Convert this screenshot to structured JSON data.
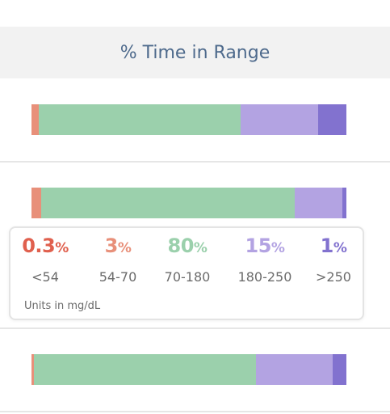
{
  "header": {
    "title": "% Time in Range"
  },
  "colors": {
    "very_low": "#e0604e",
    "low": "#e8907a",
    "in_range": "#9bd0ac",
    "high": "#b3a3e2",
    "very_high": "#8272cf"
  },
  "rows": [
    {
      "segments": [
        2.3,
        64.0,
        24.7,
        9.0
      ]
    },
    {
      "segments": [
        3.0,
        80.5,
        15.3,
        1.2
      ]
    },
    {
      "segments": [
        0.8,
        70.6,
        24.3,
        4.3
      ]
    }
  ],
  "tooltip": {
    "items": [
      {
        "value": "0.3",
        "unit": "%",
        "range": "<54",
        "color": "#e0604e"
      },
      {
        "value": "3",
        "unit": "%",
        "range": "54-70",
        "color": "#e8907a"
      },
      {
        "value": "80",
        "unit": "%",
        "range": "70-180",
        "color": "#9bd0ac"
      },
      {
        "value": "15",
        "unit": "%",
        "range": "180-250",
        "color": "#b3a3e2"
      },
      {
        "value": "1",
        "unit": "%",
        "range": ">250",
        "color": "#8272cf"
      }
    ],
    "units_note": "Units in mg/dL"
  }
}
